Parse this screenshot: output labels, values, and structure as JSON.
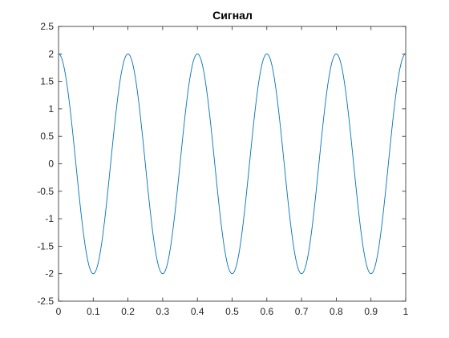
{
  "chart_data": {
    "type": "line",
    "title": "Сигнал",
    "xlabel": "",
    "ylabel": "",
    "xlim": [
      0,
      1
    ],
    "ylim": [
      -2.5,
      2.5
    ],
    "xticks": [
      0,
      0.1,
      0.2,
      0.3,
      0.4,
      0.5,
      0.6,
      0.7,
      0.8,
      0.9,
      1
    ],
    "xtick_labels": [
      "0",
      "0.1",
      "0.2",
      "0.3",
      "0.4",
      "0.5",
      "0.6",
      "0.7",
      "0.8",
      "0.9",
      "1"
    ],
    "yticks": [
      -2.5,
      -2,
      -1.5,
      -1,
      -0.5,
      0,
      0.5,
      1,
      1.5,
      2,
      2.5
    ],
    "ytick_labels": [
      "-2.5",
      "-2",
      "-1.5",
      "-1",
      "-0.5",
      "0",
      "0.5",
      "1",
      "1.5",
      "2",
      "2.5"
    ],
    "grid": false,
    "legend": "none",
    "series": [
      {
        "function": "2*cos(2*pi*5*x)",
        "amplitude": 2,
        "frequency": 5,
        "color": "#0072BD",
        "x": [
          0,
          0.025,
          0.05,
          0.075,
          0.1,
          0.125,
          0.15,
          0.175,
          0.2,
          0.225,
          0.25,
          0.275,
          0.3,
          0.325,
          0.35,
          0.375,
          0.4,
          0.425,
          0.45,
          0.475,
          0.5,
          0.525,
          0.55,
          0.575,
          0.6,
          0.625,
          0.65,
          0.675,
          0.7,
          0.725,
          0.75,
          0.775,
          0.8,
          0.825,
          0.85,
          0.875,
          0.9,
          0.925,
          0.95,
          0.975,
          1
        ],
        "y": [
          2,
          1.414,
          0,
          -1.414,
          -2,
          -1.414,
          0,
          1.414,
          2,
          1.414,
          0,
          -1.414,
          -2,
          -1.414,
          0,
          1.414,
          2,
          1.414,
          0,
          -1.414,
          -2,
          -1.414,
          0,
          1.414,
          2,
          1.414,
          0,
          -1.414,
          -2,
          -1.414,
          0,
          1.414,
          2,
          1.414,
          0,
          -1.414,
          -2,
          -1.414,
          0,
          1.414,
          2
        ]
      }
    ]
  }
}
